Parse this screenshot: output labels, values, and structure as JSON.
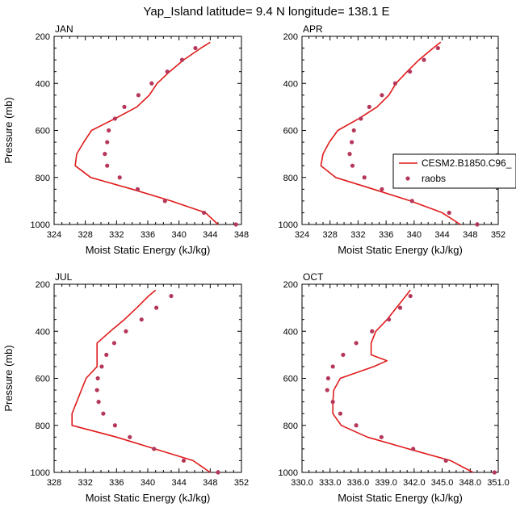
{
  "figure": {
    "title": "Yap_Island  latitude= 9.4 N longitude= 138.1 E",
    "colors": {
      "model_line": "#e01b1b",
      "obs_marker": "#b5375a",
      "axes": "#000000"
    },
    "legend": {
      "placement": "right of APR panel",
      "entries": [
        {
          "label": "CESM2.B1850.C96_",
          "style": "line"
        },
        {
          "label": "raobs",
          "style": "marker"
        }
      ]
    }
  },
  "chart_data": [
    {
      "type": "line",
      "title": "JAN",
      "xlabel": "Moist Static Energy (kJ/kg)",
      "ylabel": "Pressure (mb)",
      "xlim": [
        324,
        348
      ],
      "ylim": [
        1000,
        200
      ],
      "xticks": [
        324,
        328,
        332,
        336,
        340,
        344,
        348
      ],
      "xtick_labels": [
        "324",
        "328",
        "332",
        "336",
        "340",
        "344",
        "348"
      ],
      "yticks": [
        200,
        400,
        600,
        800,
        1000
      ],
      "ytick_labels": [
        "200",
        "400",
        "600",
        "800",
        "1000"
      ],
      "series": [
        {
          "name": "CESM2.B1850.C96_",
          "kind": "line",
          "pressure": [
            1000,
            950,
            900,
            850,
            800,
            750,
            700,
            650,
            600,
            550,
            500,
            450,
            400,
            350,
            300,
            250,
            225
          ],
          "mse": [
            345.0,
            343.4,
            339.0,
            334.0,
            328.7,
            326.7,
            326.9,
            327.8,
            328.8,
            331.8,
            334.6,
            336.2,
            337.2,
            338.8,
            340.6,
            342.8,
            344.0
          ]
        },
        {
          "name": "raobs",
          "kind": "marker",
          "pressure": [
            1000,
            950,
            900,
            850,
            800,
            750,
            700,
            650,
            600,
            550,
            500,
            450,
            400,
            350,
            300,
            250
          ],
          "mse": [
            347.3,
            343.2,
            338.2,
            334.7,
            332.4,
            330.8,
            330.5,
            330.8,
            331.0,
            331.8,
            333.0,
            334.8,
            336.5,
            338.5,
            340.4,
            342.1
          ]
        }
      ]
    },
    {
      "type": "line",
      "title": "APR",
      "xlabel": "Moist Static Energy (kJ/kg)",
      "ylabel": "",
      "xlim": [
        324,
        352
      ],
      "ylim": [
        1000,
        200
      ],
      "xticks": [
        324,
        328,
        332,
        336,
        340,
        344,
        348,
        352
      ],
      "xtick_labels": [
        "324",
        "328",
        "332",
        "336",
        "340",
        "344",
        "348",
        "352"
      ],
      "yticks": [
        200,
        400,
        600,
        800,
        1000
      ],
      "ytick_labels": [
        "200",
        "400",
        "600",
        "800",
        "1000"
      ],
      "series": [
        {
          "name": "CESM2.B1850.C96_",
          "kind": "line",
          "pressure": [
            1000,
            950,
            900,
            850,
            800,
            750,
            700,
            650,
            600,
            550,
            500,
            450,
            400,
            350,
            300,
            250,
            225
          ],
          "mse": [
            346.6,
            344.0,
            339.5,
            334.2,
            328.8,
            326.7,
            327.0,
            327.9,
            329.1,
            332.1,
            334.7,
            336.4,
            337.4,
            339.0,
            340.7,
            342.7,
            343.8
          ]
        },
        {
          "name": "raobs",
          "kind": "marker",
          "pressure": [
            1000,
            950,
            900,
            850,
            800,
            750,
            700,
            650,
            600,
            550,
            500,
            450,
            400,
            350,
            300,
            250
          ],
          "mse": [
            349.0,
            345.0,
            339.7,
            335.4,
            332.9,
            331.2,
            330.8,
            331.1,
            331.4,
            332.4,
            333.6,
            335.4,
            337.3,
            339.4,
            341.4,
            343.4
          ]
        }
      ]
    },
    {
      "type": "line",
      "title": "JUL",
      "xlabel": "Moist Static Energy (kJ/kg)",
      "ylabel": "Pressure (mb)",
      "xlim": [
        328,
        352
      ],
      "ylim": [
        1000,
        200
      ],
      "xticks": [
        328,
        332,
        336,
        340,
        344,
        348,
        352
      ],
      "xtick_labels": [
        "328",
        "332",
        "336",
        "340",
        "344",
        "348",
        "352"
      ],
      "yticks": [
        200,
        400,
        600,
        800,
        1000
      ],
      "ytick_labels": [
        "200",
        "400",
        "600",
        "800",
        "1000"
      ],
      "series": [
        {
          "name": "CESM2.B1850.C96_",
          "kind": "line",
          "pressure": [
            1000,
            950,
            900,
            850,
            800,
            750,
            700,
            650,
            600,
            550,
            500,
            450,
            400,
            350,
            300,
            250,
            225
          ],
          "mse": [
            348.0,
            345.8,
            340.9,
            336.0,
            330.3,
            330.3,
            330.9,
            331.5,
            332.1,
            333.5,
            333.5,
            333.5,
            335.2,
            337.0,
            338.6,
            340.1,
            341.0
          ]
        },
        {
          "name": "raobs",
          "kind": "marker",
          "pressure": [
            1000,
            950,
            900,
            850,
            800,
            750,
            700,
            650,
            600,
            550,
            500,
            450,
            400,
            350,
            300,
            250
          ],
          "mse": [
            349.0,
            344.6,
            340.8,
            337.7,
            335.8,
            334.3,
            333.7,
            333.5,
            333.6,
            334.1,
            334.7,
            335.7,
            337.2,
            339.2,
            341.1,
            343.0
          ]
        }
      ]
    },
    {
      "type": "line",
      "title": "OCT",
      "xlabel": "Moist Static Energy (kJ/kg)",
      "ylabel": "",
      "xlim": [
        330,
        351
      ],
      "ylim": [
        1000,
        200
      ],
      "xticks": [
        330,
        333,
        336,
        339,
        342,
        345,
        348,
        351
      ],
      "xtick_labels": [
        "330.0",
        "333.0",
        "336.0",
        "339.0",
        "342.0",
        "345.0",
        "348.0",
        "351.0"
      ],
      "yticks": [
        200,
        400,
        600,
        800,
        1000
      ],
      "ytick_labels": [
        "200",
        "400",
        "600",
        "800",
        "1000"
      ],
      "series": [
        {
          "name": "CESM2.B1850.C96_",
          "kind": "line",
          "pressure": [
            1000,
            950,
            900,
            850,
            800,
            750,
            700,
            650,
            600,
            550,
            525,
            500,
            450,
            400,
            350,
            300,
            250,
            225
          ],
          "mse": [
            348.3,
            345.9,
            341.4,
            337.0,
            334.2,
            333.3,
            333.3,
            333.4,
            334.1,
            337.7,
            339.1,
            337.4,
            337.4,
            337.9,
            339.1,
            340.1,
            341.1,
            341.6
          ]
        },
        {
          "name": "raobs",
          "kind": "marker",
          "pressure": [
            1000,
            950,
            900,
            850,
            800,
            750,
            700,
            650,
            600,
            550,
            500,
            450,
            400,
            350,
            300,
            250
          ],
          "mse": [
            350.6,
            345.4,
            341.9,
            338.5,
            335.8,
            334.1,
            333.3,
            332.7,
            332.8,
            333.3,
            334.4,
            335.8,
            337.5,
            339.3,
            340.5,
            341.6
          ]
        }
      ]
    }
  ]
}
